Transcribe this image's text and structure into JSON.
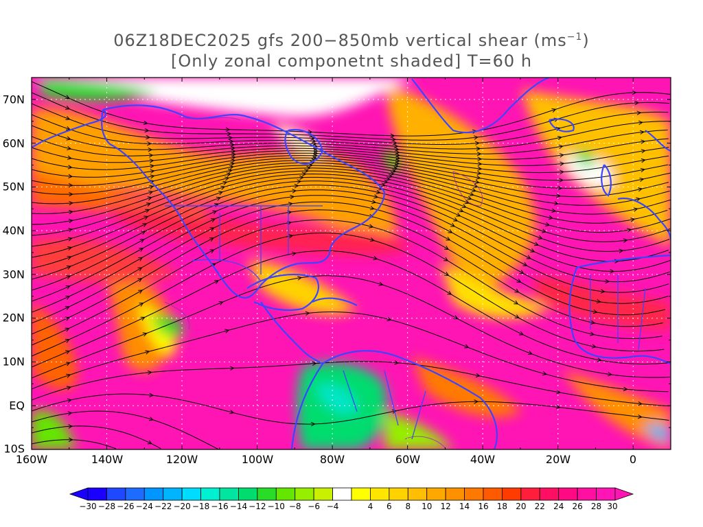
{
  "title": {
    "line1_pre": "06Z18DEC2025 gfs 200−850mb vertical shear (ms",
    "line1_sup": "−1",
    "line1_post": ")",
    "line2": "[Only zonal componetnt shaded] T=60 h"
  },
  "map": {
    "extent": {
      "lon": [
        -160,
        10
      ],
      "lat": [
        -10,
        75
      ]
    },
    "lat_labels": [
      "70N",
      "60N",
      "50N",
      "40N",
      "30N",
      "20N",
      "10N",
      "EQ",
      "10S"
    ],
    "lon_labels": [
      "160W",
      "140W",
      "120W",
      "100W",
      "80W",
      "60W",
      "40W",
      "20W",
      "0"
    ],
    "layers": [
      "zonal-shear-shading",
      "shear-streamlines",
      "coastlines",
      "political-borders",
      "dotted-gridlines"
    ]
  },
  "colorbar": {
    "labels": [
      "−30",
      "−28",
      "−26",
      "−24",
      "−22",
      "−20",
      "−18",
      "−16",
      "−14",
      "−12",
      "−10",
      "−8",
      "−6",
      "−4",
      "4",
      "6",
      "8",
      "10",
      "12",
      "14",
      "16",
      "18",
      "20",
      "22",
      "24",
      "26",
      "28",
      "30"
    ],
    "colors": [
      "#1a00ff",
      "#2048ff",
      "#1e6cff",
      "#0096ff",
      "#00b4ff",
      "#00dcff",
      "#00f0d2",
      "#00e6a0",
      "#00dc6e",
      "#28dc28",
      "#64e600",
      "#96ee00",
      "#c8f000",
      "#ffffff",
      "#ffff00",
      "#ffe600",
      "#ffd200",
      "#ffbe00",
      "#ffa800",
      "#ff9100",
      "#ff7800",
      "#ff5a00",
      "#ff3c00",
      "#ff1e3c",
      "#ff0f64",
      "#ff0a82",
      "#ff10a0",
      "#ff14b4"
    ]
  }
}
